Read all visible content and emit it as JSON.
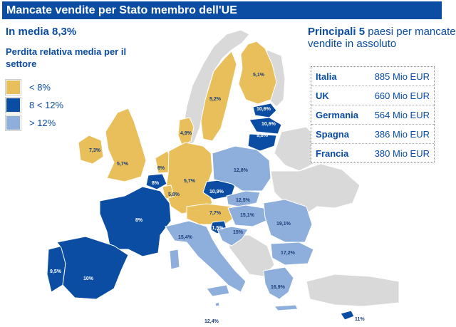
{
  "title": "Mancate vendite per Stato membro dell'UE",
  "average": "In media 8,3%",
  "subtitle": "Perdita relativa media per il settore",
  "legend": [
    {
      "label": "< 8%",
      "color": "#e8bf5a"
    },
    {
      "label": "8 < 12%",
      "color": "#0a4da2"
    },
    {
      "label": "> 12%",
      "color": "#8eaedb"
    }
  ],
  "colors": {
    "non_eu": "#d9d9d9",
    "dark_text": "#ffffff",
    "light_text": "#1a3f7a"
  },
  "top5": {
    "title_bold": "Principali 5",
    "title_rest": " paesi per mancate vendite in assoluto",
    "rows": [
      {
        "country": "Italia",
        "value": "885 Mio EUR"
      },
      {
        "country": "UK",
        "value": "660 Mio EUR"
      },
      {
        "country": "Germania",
        "value": "564 Mio EUR"
      },
      {
        "country": "Spagna",
        "value": "386 Mio EUR"
      },
      {
        "country": "Francia",
        "value": "380 Mio EUR"
      }
    ]
  },
  "map_labels": {
    "finland": "5,1%",
    "sweden": "5,2%",
    "estonia": "10,6%",
    "latvia": "10,6%",
    "lithuania": "9,8%",
    "denmark": "4,9%",
    "ireland": "7,3%",
    "uk": "5,7%",
    "netherlands": "6%",
    "belgium": "8%",
    "luxembourg": "5,8%",
    "germany": "5,7%",
    "poland": "12,8%",
    "czechia": "10,9%",
    "slovakia": "12,5%",
    "austria": "7,7%",
    "hungary": "15,1%",
    "slovenia": "11,5%",
    "croatia": "15%",
    "romania": "19,1%",
    "bulgaria": "17,2%",
    "france": "8%",
    "italy": "15,4%",
    "portugal": "9,5%",
    "spain": "10%",
    "greece": "16,9%",
    "malta": "12,4%",
    "cyprus": "11%"
  }
}
